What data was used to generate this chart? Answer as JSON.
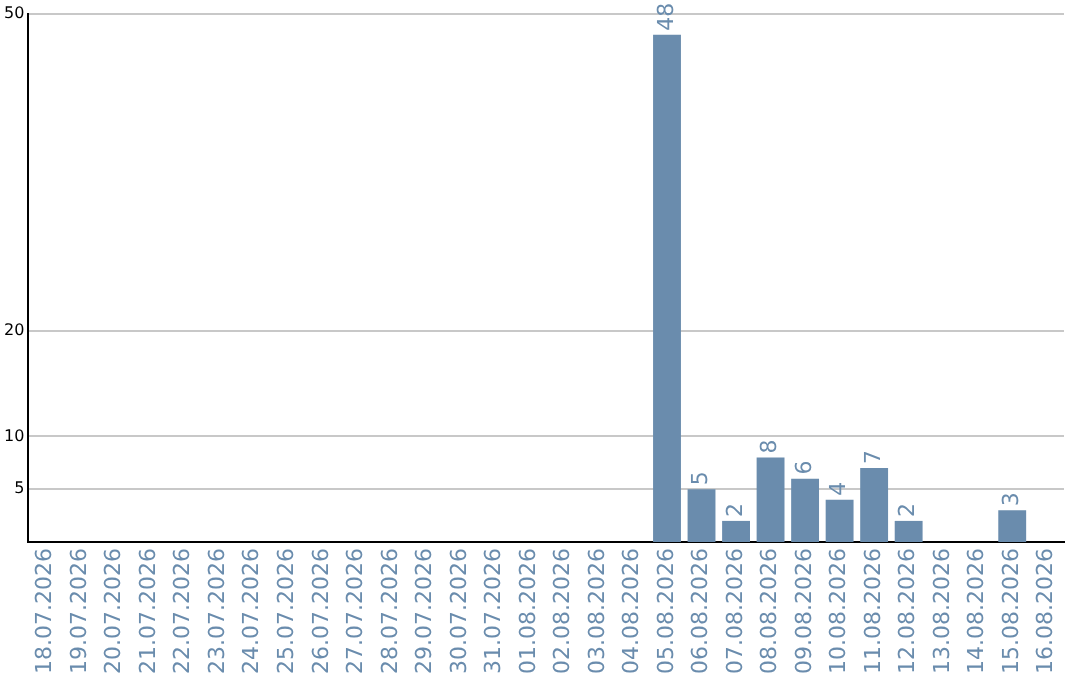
{
  "chart_data": {
    "type": "bar",
    "categories": [
      "18.07.2026",
      "19.07.2026",
      "20.07.2026",
      "21.07.2026",
      "22.07.2026",
      "23.07.2026",
      "24.07.2026",
      "25.07.2026",
      "26.07.2026",
      "27.07.2026",
      "28.07.2026",
      "29.07.2026",
      "30.07.2026",
      "31.07.2026",
      "01.08.2026",
      "02.08.2026",
      "03.08.2026",
      "04.08.2026",
      "05.08.2026",
      "06.08.2026",
      "07.08.2026",
      "08.08.2026",
      "09.08.2026",
      "10.08.2026",
      "11.08.2026",
      "12.08.2026",
      "13.08.2026",
      "14.08.2026",
      "15.08.2026",
      "16.08.2026"
    ],
    "values": [
      null,
      null,
      null,
      null,
      null,
      null,
      null,
      null,
      null,
      null,
      null,
      null,
      null,
      null,
      null,
      null,
      null,
      null,
      48,
      5,
      2,
      8,
      6,
      4,
      7,
      2,
      null,
      null,
      3,
      null
    ],
    "color": "#6a8cad",
    "ylim": [
      0,
      50
    ],
    "yticks": [
      5,
      10,
      20,
      50
    ],
    "grid": "y",
    "data_labels": true,
    "legend": false
  }
}
